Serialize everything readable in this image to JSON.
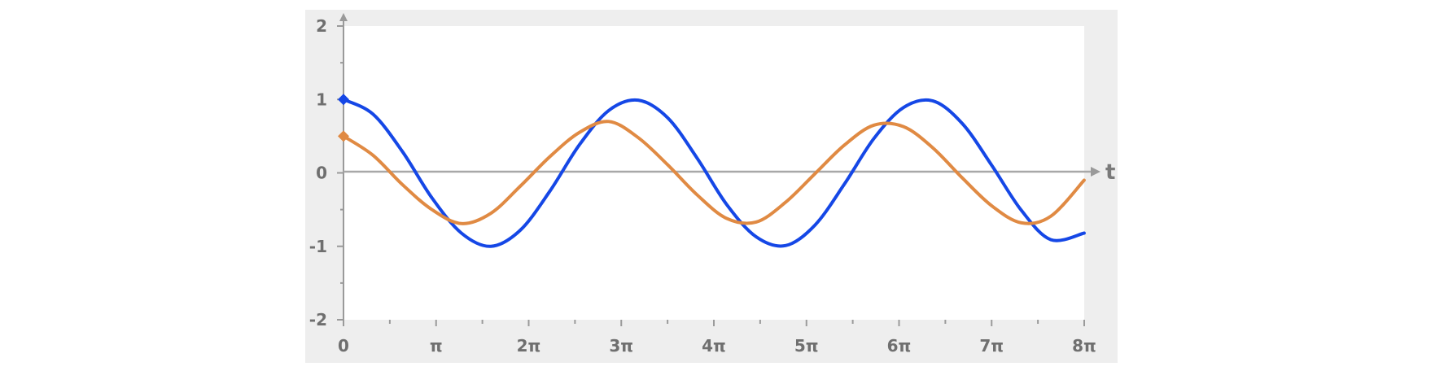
{
  "chart_data": {
    "type": "line",
    "xlabel": "t",
    "ylabel": "",
    "xlim": [
      0,
      25.1327
    ],
    "ylim": [
      -2,
      2
    ],
    "x_ticks": [
      {
        "value": 0,
        "label": "0"
      },
      {
        "value": 3.14159,
        "label": "π"
      },
      {
        "value": 6.28319,
        "label": "2π"
      },
      {
        "value": 9.42478,
        "label": "3π"
      },
      {
        "value": 12.56637,
        "label": "4π"
      },
      {
        "value": 15.70796,
        "label": "5π"
      },
      {
        "value": 18.84956,
        "label": "6π"
      },
      {
        "value": 21.99115,
        "label": "7π"
      },
      {
        "value": 25.13274,
        "label": "8π"
      }
    ],
    "y_ticks": [
      {
        "value": 2,
        "label": "2"
      },
      {
        "value": 1,
        "label": "1"
      },
      {
        "value": 0,
        "label": "0"
      },
      {
        "value": -1,
        "label": "-1"
      },
      {
        "value": -2,
        "label": "-2"
      }
    ],
    "series": [
      {
        "color": "#1547e6",
        "x": [
          0,
          1,
          2,
          3,
          4,
          5,
          6,
          7,
          8,
          9,
          10,
          11,
          12,
          13,
          14,
          15,
          16,
          17,
          18,
          19,
          20,
          21,
          22,
          23,
          24,
          25.13
        ],
        "y": [
          1.0,
          0.8,
          0.29,
          -0.34,
          -0.82,
          -1.0,
          -0.78,
          -0.25,
          0.38,
          0.85,
          0.99,
          0.75,
          0.2,
          -0.43,
          -0.87,
          -0.99,
          -0.71,
          -0.15,
          0.47,
          0.89,
          0.98,
          0.67,
          0.1,
          -0.51,
          -0.91,
          -0.82
        ]
      },
      {
        "color": "#e08a43",
        "x": [
          0,
          1,
          2,
          3,
          4,
          5,
          6,
          7,
          8,
          9,
          10,
          11,
          12,
          13,
          14,
          15,
          16,
          17,
          18,
          19,
          20,
          21,
          22,
          23,
          24,
          25.13
        ],
        "y": [
          0.5,
          0.24,
          -0.16,
          -0.5,
          -0.69,
          -0.55,
          -0.18,
          0.22,
          0.55,
          0.7,
          0.48,
          0.11,
          -0.3,
          -0.62,
          -0.67,
          -0.4,
          -0.01,
          0.38,
          0.65,
          0.63,
          0.34,
          -0.07,
          -0.45,
          -0.68,
          -0.59,
          -0.1
        ]
      }
    ]
  }
}
